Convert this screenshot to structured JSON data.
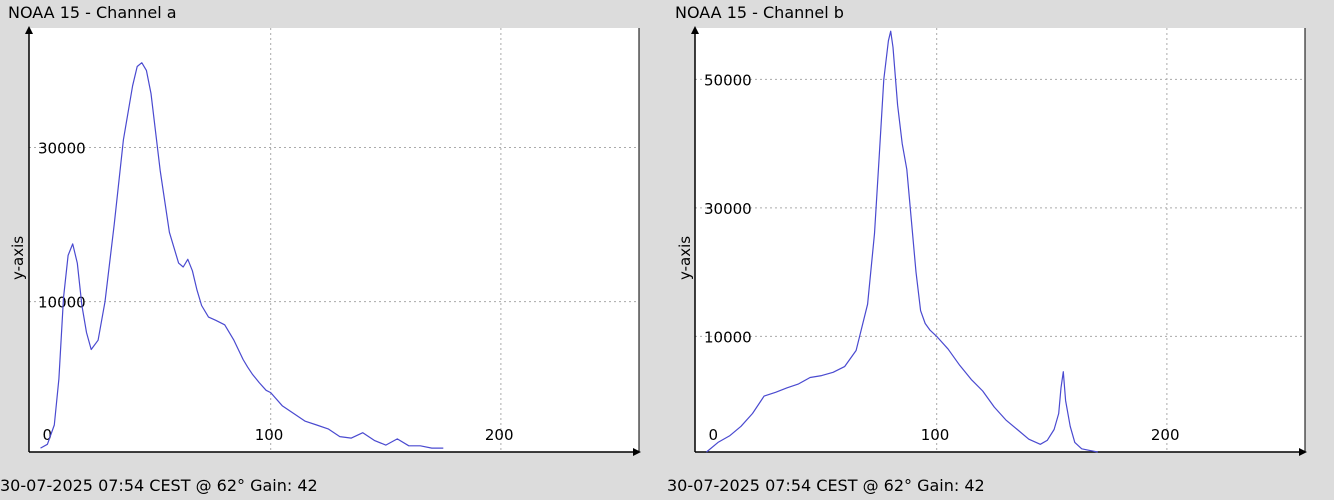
{
  "colors": {
    "background": "#dcdcdc",
    "plot_bg": "#ffffff",
    "line": "#4a4ad0",
    "grid": "#aaaaaa"
  },
  "chart_data": [
    {
      "type": "line",
      "title": "NOAA 15 - Channel a",
      "ylabel": "y-axis",
      "footer": "30-07-2025 07:54 CEST @ 62° Gain: 42",
      "xlim": [
        -5,
        260
      ],
      "ylim": [
        -9500,
        45500
      ],
      "x_ticks": [
        0,
        100,
        200
      ],
      "x_tick_labels": [
        "0",
        "100",
        "200"
      ],
      "y_ticks": [
        10000,
        30000
      ],
      "y_tick_labels": [
        "10000",
        "30000"
      ],
      "grid": true,
      "series": [
        {
          "x": [
            0,
            3,
            6,
            8,
            10,
            12,
            14,
            16,
            18,
            20,
            22,
            25,
            28,
            32,
            36,
            40,
            42,
            44,
            46,
            48,
            50,
            52,
            54,
            56,
            58,
            60,
            62,
            64,
            66,
            68,
            70,
            73,
            76,
            80,
            84,
            88,
            90,
            92,
            95,
            98,
            100,
            105,
            110,
            115,
            120,
            125,
            130,
            135,
            140,
            145,
            150,
            155,
            160,
            165,
            170,
            175
          ],
          "y": [
            -9000,
            -8500,
            -6000,
            0,
            10500,
            16000,
            17500,
            15000,
            9500,
            6000,
            3800,
            5000,
            10000,
            20000,
            31000,
            38000,
            40500,
            41000,
            40000,
            37000,
            32000,
            27000,
            23000,
            19000,
            17000,
            15000,
            14500,
            15500,
            14000,
            11500,
            9500,
            8000,
            7600,
            7000,
            5000,
            2500,
            1500,
            600,
            -500,
            -1500,
            -1800,
            -3500,
            -4500,
            -5500,
            -6000,
            -6500,
            -7500,
            -7700,
            -7000,
            -8000,
            -8600,
            -7800,
            -8700,
            -8700,
            -9000,
            -9000
          ]
        }
      ]
    },
    {
      "type": "line",
      "title": "NOAA 15 - Channel b",
      "ylabel": "y-axis",
      "footer": "30-07-2025 07:54 CEST @ 62° Gain: 42",
      "xlim": [
        -5,
        260
      ],
      "ylim": [
        -8000,
        58000
      ],
      "x_ticks": [
        0,
        100,
        200
      ],
      "x_tick_labels": [
        "0",
        "100",
        "200"
      ],
      "y_ticks": [
        10000,
        30000,
        50000
      ],
      "y_tick_labels": [
        "10000",
        "30000",
        "50000"
      ],
      "grid": true,
      "series": [
        {
          "x": [
            0,
            5,
            10,
            15,
            20,
            25,
            30,
            35,
            40,
            45,
            50,
            55,
            60,
            65,
            70,
            73,
            75,
            77,
            79,
            80,
            81,
            83,
            85,
            87,
            89,
            91,
            93,
            95,
            97,
            100,
            105,
            110,
            115,
            120,
            125,
            130,
            135,
            140,
            145,
            148,
            151,
            153,
            154,
            155,
            156,
            158,
            160,
            163,
            167,
            170
          ],
          "y": [
            -8000,
            -6500,
            -5500,
            -4000,
            -2000,
            700,
            1300,
            2000,
            2600,
            3600,
            3900,
            4400,
            5300,
            7800,
            15000,
            26000,
            38000,
            50000,
            56000,
            57500,
            55000,
            46000,
            40000,
            36000,
            28000,
            20000,
            14000,
            12000,
            11000,
            10000,
            8000,
            5500,
            3300,
            1500,
            -1000,
            -3000,
            -4500,
            -6000,
            -6800,
            -6200,
            -4500,
            -2000,
            2000,
            4500,
            0,
            -4000,
            -6500,
            -7500,
            -7800,
            -8000
          ]
        }
      ]
    }
  ]
}
